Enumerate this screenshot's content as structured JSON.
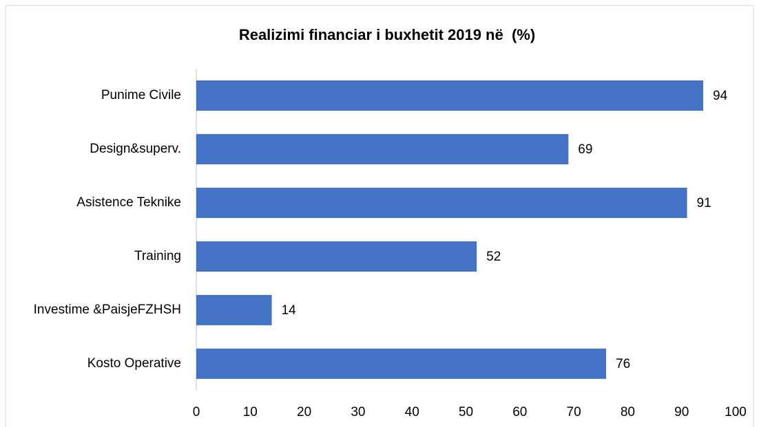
{
  "chart_data": {
    "type": "bar",
    "orientation": "horizontal",
    "title": "Realizimi financiar i buxhetit 2019 në  (%)",
    "categories": [
      "Punime Civile",
      "Design&superv.",
      "Asistence Teknike",
      "Training",
      "Investime &PaisjeFZHSH",
      "Kosto Operative"
    ],
    "values": [
      94,
      69,
      91,
      52,
      14,
      76
    ],
    "color": "#4472c4",
    "xlim": [
      0,
      100
    ],
    "xticks": [
      0,
      10,
      20,
      30,
      40,
      50,
      60,
      70,
      80,
      90,
      100
    ],
    "grid": false
  }
}
